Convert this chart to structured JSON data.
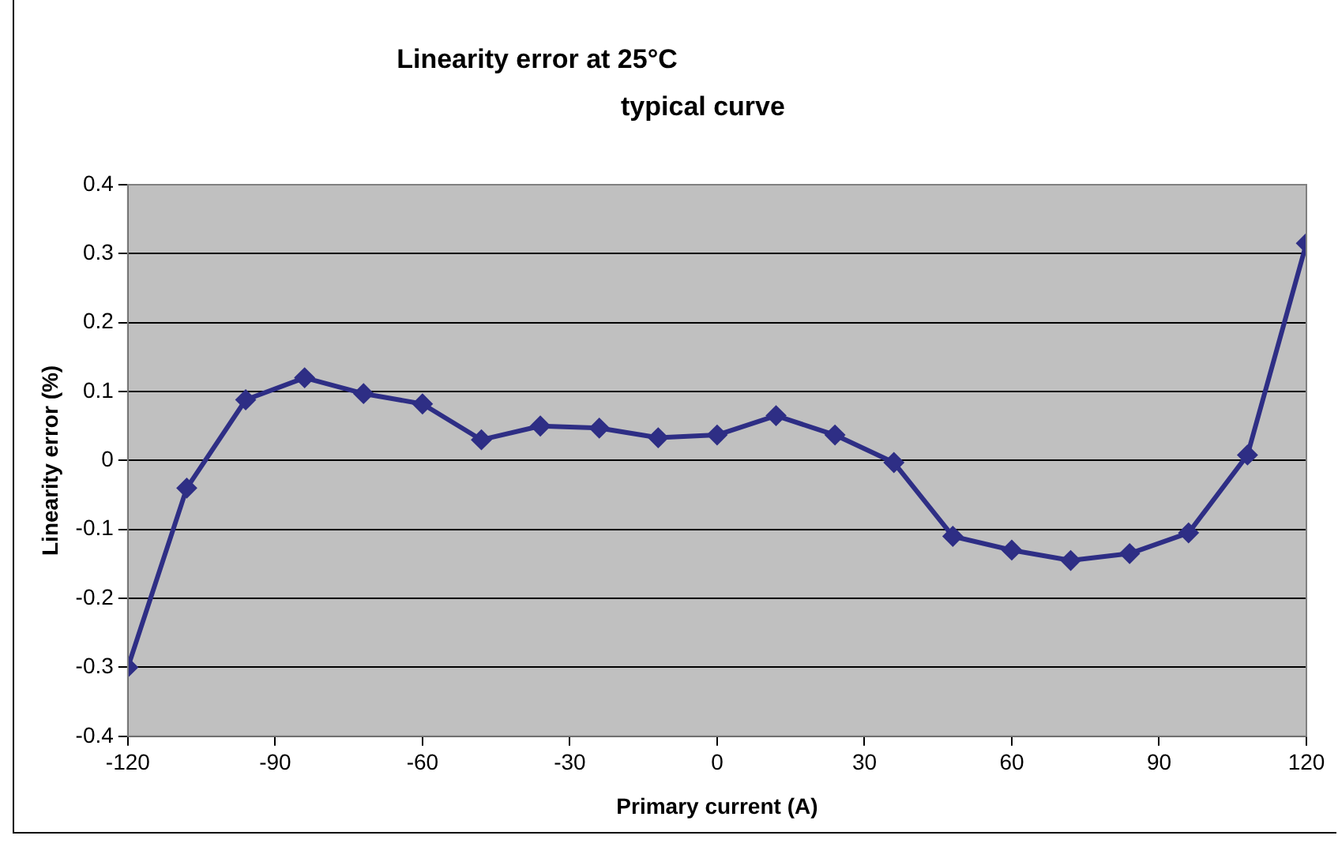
{
  "chart_data": {
    "type": "line",
    "title": "Linearity error at 25°C",
    "subtitle": "typical curve",
    "xlabel": "Primary current (A)",
    "ylabel": "Linearity error (%)",
    "x": [
      -120,
      -108,
      -96,
      -84,
      -72,
      -60,
      -48,
      -36,
      -24,
      -12,
      0,
      12,
      24,
      36,
      48,
      60,
      72,
      84,
      96,
      108,
      120
    ],
    "series": [
      {
        "color": "#2e2e85",
        "values": [
          -0.3,
          -0.04,
          0.088,
          0.12,
          0.097,
          0.082,
          0.03,
          0.05,
          0.047,
          0.033,
          0.037,
          0.065,
          0.037,
          -0.003,
          -0.11,
          -0.13,
          -0.145,
          -0.135,
          -0.105,
          0.008,
          0.315
        ]
      }
    ],
    "xlim": [
      -120,
      120
    ],
    "xticks": [
      -120,
      -90,
      -60,
      -30,
      0,
      30,
      60,
      90,
      120
    ],
    "ylim": [
      -0.4,
      0.4
    ],
    "yticks": [
      -0.4,
      -0.3,
      -0.2,
      -0.1,
      0,
      0.1,
      0.2,
      0.3,
      0.4
    ],
    "grid": "y",
    "legend": false,
    "marker": "diamond",
    "line_style": "solid"
  }
}
